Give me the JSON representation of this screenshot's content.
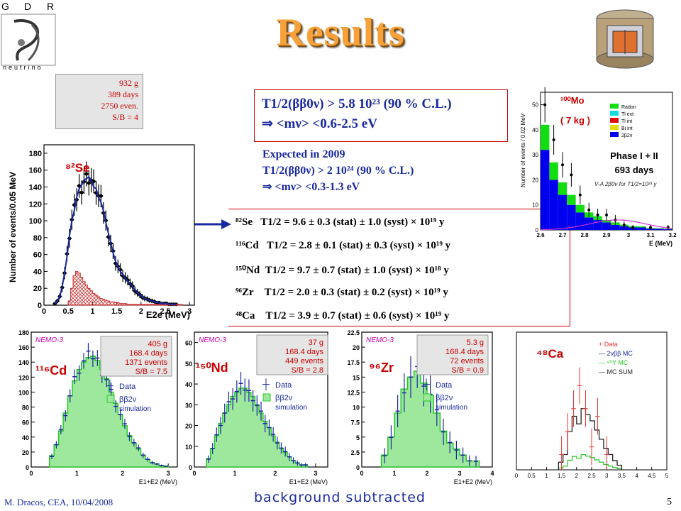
{
  "title": "Results",
  "logo": {
    "letters": [
      "G",
      "D",
      "R"
    ],
    "word": "neutrino"
  },
  "se_info": [
    "932 g",
    "389 days",
    "2750  even.",
    "S/B = 4"
  ],
  "main_result": {
    "line1": "T1/2(ββ0ν) > 5.8 10²³ (90 % C.L.)",
    "line2": "⇒ <mν> <0.6-2.5 eV"
  },
  "expected": {
    "line1": "Expected in 2009",
    "line2": "T1/2(ββ0ν) > 2 10²⁴ (90 % C.L.)",
    "line3": "⇒ <mν> <0.3-1.3 eV"
  },
  "half_lives": [
    {
      "isotope": "⁸²Se",
      "text": "T1/2 =  9.6 ± 0.3 (stat) ± 1.0 (syst) × 10¹⁹ y"
    },
    {
      "isotope": "¹¹⁶Cd",
      "text": "T1/2 = 2.8 ± 0.1 (stat) ± 0.3 (syst) × 10¹⁹ y"
    },
    {
      "isotope": "¹⁵⁰Nd",
      "text": "T1/2 = 9.7 ± 0.7 (stat) ± 1.0 (syst) × 10¹⁸ y"
    },
    {
      "isotope": "⁹⁶Zr",
      "text": "T1/2 = 2.0 ± 0.3 (stat) ± 0.2 (syst) × 10¹⁹ y"
    },
    {
      "isotope": "⁴⁸Ca",
      "text": "T1/2 = 3.9 ± 0.7 (stat) ± 0.6 (syst) × 10¹⁹ y"
    }
  ],
  "footer": {
    "author": "M. Dracos, CEA, 10/04/2008",
    "note": "background subtracted",
    "page": "5"
  },
  "colors": {
    "title": "#f7a13a",
    "red": "#cc0000",
    "blue": "#1a2aa0",
    "hist_fill": "#9ee89e",
    "hist_line": "#28c828"
  },
  "chart_data": [
    {
      "id": "se82",
      "type": "bar",
      "label": "⁸²Se",
      "ylabel": "Number of events/0.05 MeV",
      "xlabel": "E2e (MeV)",
      "xlim": [
        0,
        3.1
      ],
      "ylim": [
        0,
        190
      ],
      "xticks": [
        "0",
        "0.5",
        "1",
        "1.5",
        "2",
        "2.5",
        "3"
      ],
      "yticks": [
        "0",
        "20",
        "40",
        "60",
        "80",
        "100",
        "120",
        "140",
        "160",
        "180"
      ],
      "bins_start": 0.2,
      "bin_width": 0.05,
      "values": [
        2,
        5,
        10,
        22,
        38,
        58,
        82,
        100,
        112,
        128,
        138,
        142,
        148,
        150,
        152,
        148,
        140,
        138,
        128,
        122,
        112,
        98,
        86,
        74,
        62,
        52,
        46,
        40,
        36,
        32,
        28,
        26,
        22,
        18,
        15,
        12,
        10,
        8,
        7,
        6,
        5,
        4,
        3,
        3,
        2,
        2,
        2,
        1,
        1,
        1,
        1
      ]
    },
    {
      "id": "cd116",
      "type": "bar",
      "label": "¹¹⁶Cd",
      "info": [
        "405 g",
        "168.4 days",
        "1371  events",
        "S/B = 7.5"
      ],
      "brand": "NEMO-3",
      "legend": {
        "data": "Data",
        "sim": "ββ2ν",
        "sim2": "simulation"
      },
      "xlabel": "E1+E2 (MeV)",
      "xlim": [
        0,
        3.2
      ],
      "ylim": [
        0,
        180
      ],
      "xticks": [
        "0",
        "1",
        "2",
        "3"
      ],
      "yticks": [
        "0",
        "20",
        "40",
        "60",
        "80",
        "100",
        "120",
        "140",
        "160",
        "180"
      ],
      "bins_start": 0.4,
      "bin_width": 0.1,
      "values": [
        15,
        30,
        48,
        72,
        95,
        115,
        130,
        140,
        146,
        148,
        142,
        130,
        118,
        100,
        85,
        70,
        55,
        42,
        32,
        24,
        16,
        10,
        6,
        4,
        2,
        1
      ]
    },
    {
      "id": "nd150",
      "type": "bar",
      "label": "¹⁵⁰Nd",
      "info": [
        "37 g",
        "168.4 days",
        "449  events",
        "S/B = 2.8"
      ],
      "brand": "NEMO-3",
      "legend": {
        "data": "Data",
        "sim": "ββ2ν",
        "sim2": "simulation"
      },
      "xlabel": "E1+E2 (MeV)",
      "xlim": [
        0,
        3.3
      ],
      "ylim": [
        0,
        65
      ],
      "xticks": [
        "0",
        "1",
        "2",
        "3"
      ],
      "yticks": [
        "0",
        "10",
        "20",
        "30",
        "40",
        "50",
        "60"
      ],
      "bins_start": 0.3,
      "bin_width": 0.1,
      "values": [
        4,
        9,
        15,
        21,
        26,
        30,
        34,
        36,
        38,
        38,
        36,
        34,
        30,
        26,
        22,
        19,
        15,
        12,
        9,
        7,
        5,
        3,
        2,
        1,
        1
      ]
    },
    {
      "id": "zr96",
      "type": "bar",
      "label": "⁹⁶Zr",
      "info": [
        "5.3 g",
        "168.4 days",
        "72  events",
        "S/B = 0.9"
      ],
      "brand": "NEMO-3",
      "legend": {
        "data": "Data",
        "sim": "ββ2ν",
        "sim2": "simulation"
      },
      "xlabel": "E1+E2 (MeV)",
      "xlim": [
        0,
        4
      ],
      "ylim": [
        0,
        22.5
      ],
      "xticks": [
        "0",
        "1",
        "2",
        "3",
        "4"
      ],
      "yticks": [
        "0",
        "2.5",
        "5",
        "7.5",
        "10",
        "12.5",
        "15",
        "17.5",
        "20",
        "22.5"
      ],
      "bins_start": 0.6,
      "bin_width": 0.2,
      "values": [
        2,
        5,
        9,
        13,
        15,
        16,
        14,
        12,
        9,
        6,
        4,
        3,
        2,
        1,
        1
      ]
    },
    {
      "id": "ca48",
      "type": "bar",
      "label": "⁴⁸Ca",
      "legend": [
        "+ Data",
        "— 2νββ MC",
        "— ⁹⁰Y MC",
        "— MC SUM"
      ],
      "xlim": [
        0,
        5
      ],
      "ylim": [
        0,
        9
      ],
      "xticks": [
        "0",
        "0.5",
        "1",
        "1.5",
        "2",
        "2.5",
        "3",
        "3.5",
        "4",
        "4.5",
        "5"
      ]
    },
    {
      "id": "mo100",
      "type": "bar",
      "label": "¹⁰⁰Mo",
      "mass": "( 7 kg )",
      "phase": "Phase I + II",
      "days": "693 days",
      "ylabel": "Number of events / 0.02 MeV",
      "xlabel": "E (MeV)",
      "fit_label": "V-A 2β0ν for T1/2=10²³ y",
      "legend": [
        "Radon",
        "Tl ext",
        "Tl int",
        "Bi int",
        "2β2ν"
      ],
      "xlim": [
        2.6,
        3.2
      ],
      "ylim": [
        0,
        55
      ],
      "xticks": [
        "2.6",
        "2.7",
        "2.8",
        "2.9",
        "3",
        "3.1",
        "3.2"
      ],
      "yticks": [
        "0",
        "10",
        "20",
        "30",
        "40",
        "50"
      ]
    }
  ]
}
